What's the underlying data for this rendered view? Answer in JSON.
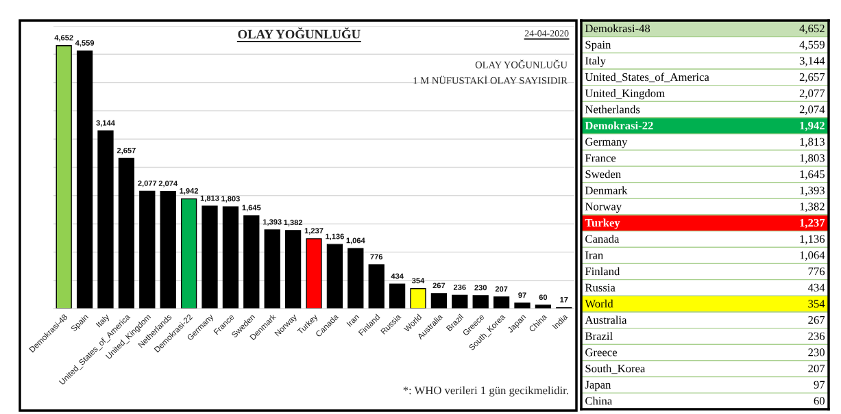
{
  "chart_data": [
    {
      "type": "bar",
      "title": "OLAY YOĞUNLUĞU",
      "annotations": [
        "24-04-2020",
        "OLAY YOĞUNLUĞU",
        "1 M NÜFUSTAKİ OLAY SAYISIDIR",
        "*: WHO verileri 1 gün gecikmelidir."
      ],
      "categories": [
        "Demokrasi-48",
        "Spain",
        "Italy",
        "United_States_of_America",
        "United_Kingdom",
        "Netherlands",
        "Demokrasi-22",
        "Germany",
        "France",
        "Sweden",
        "Denmark",
        "Norway",
        "Turkey",
        "Canada",
        "Iran",
        "Finland",
        "Russia",
        "World",
        "Australia",
        "Brazil",
        "Greece",
        "South_Korea",
        "Japan",
        "China",
        "India"
      ],
      "values": [
        4652,
        4559,
        3144,
        2657,
        2077,
        2074,
        1942,
        1813,
        1803,
        1645,
        1393,
        1382,
        1237,
        1136,
        1064,
        776,
        434,
        354,
        267,
        236,
        230,
        207,
        97,
        60,
        17
      ],
      "value_labels": [
        "4,652",
        "4,559",
        "3,144",
        "2,657",
        "2,077",
        "2,074",
        "1,942",
        "1,813",
        "1,803",
        "1,645",
        "1,393",
        "1,382",
        "1,237",
        "1,136",
        "1,064",
        "776",
        "434",
        "354",
        "267",
        "236",
        "230",
        "207",
        "97",
        "60",
        "17"
      ],
      "colors": [
        "#92d050",
        "#000000",
        "#000000",
        "#000000",
        "#000000",
        "#000000",
        "#00b050",
        "#000000",
        "#000000",
        "#000000",
        "#000000",
        "#000000",
        "#ff0000",
        "#000000",
        "#000000",
        "#000000",
        "#000000",
        "#ffff00",
        "#000000",
        "#000000",
        "#000000",
        "#000000",
        "#000000",
        "#000000",
        "#000000"
      ],
      "ylim": [
        0,
        5000
      ],
      "yticks": [
        {
          "value": 0,
          "label": null
        },
        {
          "value": 500,
          "label": null
        },
        {
          "value": 1000,
          "label": null
        },
        {
          "value": 1500,
          "label": null
        },
        {
          "value": 2000,
          "label": null
        },
        {
          "value": 2500,
          "label": null
        },
        {
          "value": 3000,
          "label": null
        },
        {
          "value": 3500,
          "label": null
        },
        {
          "value": 4000,
          "label": null
        },
        {
          "value": 4500,
          "label": null
        },
        {
          "value": 5000,
          "label": null
        }
      ],
      "grid": "y",
      "tick_labels": "x"
    },
    {
      "type": "other",
      "categories": [
        "Demokrasi-48",
        "Spain",
        "Italy",
        "United_States_of_America",
        "United_Kingdom",
        "Netherlands",
        "Demokrasi-22",
        "Germany",
        "France",
        "Sweden",
        "Denmark",
        "Norway",
        "Turkey",
        "Canada",
        "Iran",
        "Finland",
        "Russia",
        "World",
        "Australia",
        "Brazil",
        "Greece",
        "South_Korea",
        "Japan",
        "China"
      ],
      "values": [
        4652,
        4559,
        3144,
        2657,
        2077,
        2074,
        1942,
        1813,
        1803,
        1645,
        1393,
        1382,
        1237,
        1136,
        1064,
        776,
        434,
        354,
        267,
        236,
        230,
        207,
        97,
        60
      ],
      "value_labels": [
        "4,652",
        "4,559",
        "3,144",
        "2,657",
        "2,077",
        "2,074",
        "1,942",
        "1,813",
        "1,803",
        "1,645",
        "1,393",
        "1,382",
        "1,237",
        "1,136",
        "1,064",
        "776",
        "434",
        "354",
        "267",
        "236",
        "230",
        "207",
        "97",
        "60"
      ],
      "colors": [
        "#c6e0b4",
        "#ffffff",
        "#ffffff",
        "#ffffff",
        "#ffffff",
        "#ffffff",
        "#00b050",
        "#ffffff",
        "#ffffff",
        "#ffffff",
        "#ffffff",
        "#ffffff",
        "#ff0000",
        "#ffffff",
        "#ffffff",
        "#ffffff",
        "#ffffff",
        "#ffff00",
        "#ffffff",
        "#ffffff",
        "#ffffff",
        "#ffffff",
        "#ffffff",
        "#ffffff"
      ]
    }
  ]
}
